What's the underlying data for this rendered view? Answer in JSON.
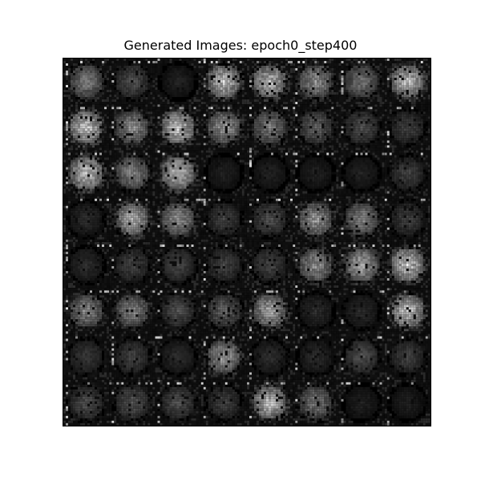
{
  "figure": {
    "title": "Generated Images: epoch0_step400"
  },
  "grid": {
    "rows": 8,
    "cols": 8,
    "brightness": [
      [
        0.55,
        0.35,
        0.15,
        0.85,
        0.8,
        0.65,
        0.5,
        0.85
      ],
      [
        0.9,
        0.65,
        0.9,
        0.7,
        0.55,
        0.45,
        0.35,
        0.3
      ],
      [
        0.85,
        0.6,
        0.85,
        0.15,
        0.15,
        0.15,
        0.15,
        0.3
      ],
      [
        0.2,
        0.8,
        0.65,
        0.3,
        0.35,
        0.7,
        0.6,
        0.3
      ],
      [
        0.2,
        0.3,
        0.3,
        0.3,
        0.3,
        0.65,
        0.75,
        0.9
      ],
      [
        0.6,
        0.6,
        0.35,
        0.45,
        0.75,
        0.2,
        0.2,
        0.9
      ],
      [
        0.25,
        0.3,
        0.2,
        0.7,
        0.2,
        0.2,
        0.35,
        0.3
      ],
      [
        0.35,
        0.4,
        0.35,
        0.3,
        0.85,
        0.55,
        0.15,
        0.15
      ]
    ]
  },
  "colors": {
    "background": "#000000",
    "foreground": "#ffffff"
  }
}
